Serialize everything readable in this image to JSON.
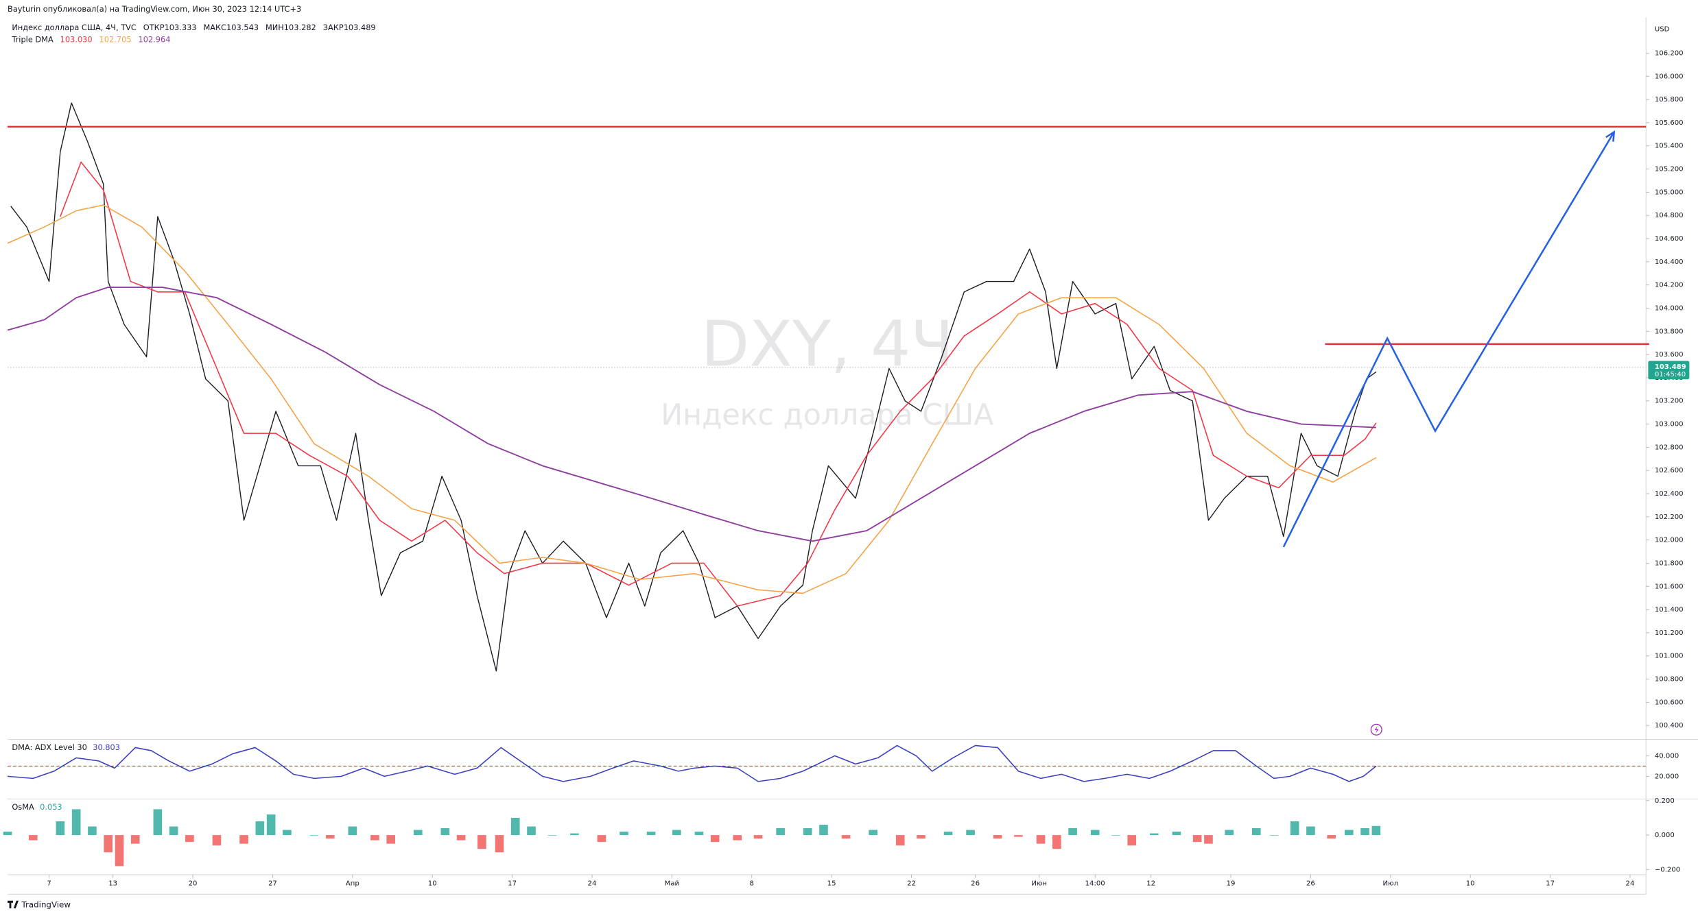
{
  "header": {
    "publisher": "Bayturin опубликовал(а) на TradingView.com, Июн 30, 2023 12:14 UTC+3",
    "symbol": "Индекс доллара США, 4Ч, TVC",
    "ohlc": [
      {
        "label": "ОТКР",
        "value": "103.333"
      },
      {
        "label": "МАКС",
        "value": "103.543"
      },
      {
        "label": "МИН",
        "value": "103.282"
      },
      {
        "label": "ЗАКР",
        "value": "103.489"
      }
    ],
    "indicator": "Triple DMA",
    "indicator_values": [
      "103.030",
      "102.705",
      "102.964"
    ]
  },
  "currency": "USD",
  "footer": {
    "logo": "TradingView"
  },
  "chart_data": [
    {
      "type": "line",
      "watermark": [
        "DXY, 4Ч",
        "Индекс доллара США"
      ],
      "xlim": [
        -2.6,
        100.0
      ],
      "xticks": [
        {
          "value": 0,
          "label": "7"
        },
        {
          "value": 4,
          "label": "13"
        },
        {
          "value": 9,
          "label": "20"
        },
        {
          "value": 14,
          "label": "27"
        },
        {
          "value": 19,
          "label": "Апр"
        },
        {
          "value": 24,
          "label": "10"
        },
        {
          "value": 29,
          "label": "17"
        },
        {
          "value": 34,
          "label": "24"
        },
        {
          "value": 39,
          "label": "Май"
        },
        {
          "value": 44,
          "label": "8"
        },
        {
          "value": 49,
          "label": "15"
        },
        {
          "value": 54,
          "label": "22"
        },
        {
          "value": 58,
          "label": "26"
        },
        {
          "value": 62,
          "label": "Июн"
        },
        {
          "value": 65.5,
          "label": "14:00"
        },
        {
          "value": 69,
          "label": "12"
        },
        {
          "value": 74,
          "label": "19"
        },
        {
          "value": 79,
          "label": "26"
        },
        {
          "value": 84,
          "label": "Июл"
        },
        {
          "value": 89,
          "label": "10"
        },
        {
          "value": 94,
          "label": "17"
        },
        {
          "value": 99,
          "label": "24"
        }
      ],
      "ylim": [
        100.28,
        106.49
      ],
      "yticks": [
        {
          "value": 100.4,
          "label": "100.400"
        },
        {
          "value": 100.6,
          "label": "100.600"
        },
        {
          "value": 100.8,
          "label": "100.800"
        },
        {
          "value": 101.0,
          "label": "101.000"
        },
        {
          "value": 101.2,
          "label": "101.200"
        },
        {
          "value": 101.4,
          "label": "101.400"
        },
        {
          "value": 101.6,
          "label": "101.600"
        },
        {
          "value": 101.8,
          "label": "101.800"
        },
        {
          "value": 102.0,
          "label": "102.000"
        },
        {
          "value": 102.2,
          "label": "102.200"
        },
        {
          "value": 102.4,
          "label": "102.400"
        },
        {
          "value": 102.6,
          "label": "102.600"
        },
        {
          "value": 102.8,
          "label": "102.800"
        },
        {
          "value": 103.0,
          "label": "103.000"
        },
        {
          "value": 103.2,
          "label": "103.200"
        },
        {
          "value": 103.4,
          "label": "103.400"
        },
        {
          "value": 103.6,
          "label": "103.600"
        },
        {
          "value": 103.8,
          "label": "103.800"
        },
        {
          "value": 104.0,
          "label": "104.000"
        },
        {
          "value": 104.2,
          "label": "104.200"
        },
        {
          "value": 104.4,
          "label": "104.400"
        },
        {
          "value": 104.6,
          "label": "104.600"
        },
        {
          "value": 104.8,
          "label": "104.800"
        },
        {
          "value": 105.0,
          "label": "105.000"
        },
        {
          "value": 105.2,
          "label": "105.200"
        },
        {
          "value": 105.4,
          "label": "105.400"
        },
        {
          "value": 105.6,
          "label": "105.600"
        },
        {
          "value": 105.8,
          "label": "105.800"
        },
        {
          "value": 106.0,
          "label": "106.000"
        },
        {
          "value": 106.2,
          "label": "106.200"
        }
      ],
      "series": [
        {
          "color": "#1c1f26",
          "width": 0.9,
          "x": [
            -2.4,
            -1.4,
            0,
            0.7,
            1.4,
            2.4,
            3.4,
            3.7,
            4.7,
            6.1,
            6.8,
            7.8,
            8.8,
            9.8,
            11.2,
            12.2,
            13.2,
            14.2,
            15.6,
            17.0,
            18.0,
            19.2,
            20.0,
            20.8,
            22.0,
            23.4,
            24.6,
            25.8,
            26.8,
            28.0,
            28.8,
            29.8,
            30.9,
            32.2,
            33.6,
            34.9,
            36.3,
            37.3,
            38.3,
            39.7,
            40.7,
            41.7,
            43.1,
            44.4,
            45.8,
            47.2,
            47.8,
            48.8,
            50.5,
            51.6,
            52.6,
            53.6,
            54.6,
            55.9,
            57.3,
            58.7,
            60.4,
            61.4,
            62.4,
            63.1,
            64.1,
            65.5,
            66.8,
            67.8,
            69.2,
            70.2,
            71.6,
            72.6,
            73.6,
            75.0,
            76.3,
            77.3,
            78.4,
            79.4,
            80.7,
            81.8,
            82.5,
            83.1
          ],
          "values": [
            104.88,
            104.7,
            104.23,
            105.35,
            105.77,
            105.44,
            105.07,
            104.23,
            103.86,
            103.58,
            104.79,
            104.42,
            103.95,
            103.39,
            103.2,
            102.17,
            102.64,
            103.11,
            102.64,
            102.64,
            102.17,
            102.92,
            102.17,
            101.52,
            101.89,
            101.99,
            102.55,
            102.17,
            101.52,
            100.87,
            101.71,
            102.08,
            101.8,
            101.99,
            101.8,
            101.33,
            101.8,
            101.43,
            101.89,
            102.08,
            101.8,
            101.33,
            101.43,
            101.15,
            101.43,
            101.61,
            102.08,
            102.64,
            102.36,
            102.92,
            103.48,
            103.2,
            103.11,
            103.58,
            104.14,
            104.23,
            104.23,
            104.51,
            104.14,
            103.48,
            104.23,
            103.95,
            104.04,
            103.39,
            103.67,
            103.29,
            103.2,
            102.17,
            102.36,
            102.55,
            102.55,
            102.03,
            102.92,
            102.64,
            102.55,
            103.11,
            103.39,
            103.45
          ]
        },
        {
          "color": "#f23645",
          "width": 1,
          "x": [
            0.7,
            2.0,
            3.4,
            5.1,
            6.8,
            8.5,
            10.2,
            12.2,
            14.2,
            16.3,
            18.7,
            20.7,
            22.7,
            24.8,
            26.8,
            28.5,
            30.9,
            33.6,
            36.3,
            39.0,
            41.0,
            43.1,
            45.8,
            47.5,
            49.2,
            51.2,
            53.3,
            55.3,
            57.3,
            59.4,
            61.4,
            63.4,
            65.5,
            67.5,
            69.5,
            71.6,
            72.9,
            75.0,
            77.0,
            79.0,
            81.1,
            82.4,
            83.1
          ],
          "values": [
            104.79,
            105.26,
            105.02,
            104.23,
            104.14,
            104.14,
            103.58,
            102.92,
            102.92,
            102.73,
            102.55,
            102.17,
            101.99,
            102.17,
            101.89,
            101.71,
            101.8,
            101.8,
            101.61,
            101.8,
            101.8,
            101.43,
            101.52,
            101.8,
            102.26,
            102.73,
            103.11,
            103.39,
            103.76,
            103.95,
            104.14,
            103.95,
            104.04,
            103.86,
            103.48,
            103.29,
            102.73,
            102.55,
            102.45,
            102.73,
            102.73,
            102.87,
            103.01
          ]
        },
        {
          "color": "#f5a244",
          "width": 1,
          "x": [
            -2.6,
            -0.3,
            1.7,
            3.4,
            5.8,
            8.5,
            11.2,
            13.9,
            16.6,
            20.0,
            22.7,
            25.4,
            28.2,
            30.9,
            33.6,
            37.0,
            40.4,
            44.4,
            47.2,
            49.9,
            52.6,
            55.3,
            58.0,
            60.7,
            63.4,
            66.8,
            69.5,
            72.3,
            75.0,
            77.7,
            80.4,
            83.1
          ],
          "values": [
            104.56,
            104.7,
            104.84,
            104.89,
            104.7,
            104.32,
            103.86,
            103.39,
            102.83,
            102.55,
            102.27,
            102.17,
            101.8,
            101.85,
            101.8,
            101.66,
            101.71,
            101.57,
            101.54,
            101.71,
            102.17,
            102.83,
            103.48,
            103.95,
            104.09,
            104.09,
            103.86,
            103.48,
            102.92,
            102.64,
            102.5,
            102.71
          ]
        },
        {
          "color": "#8e3e9e",
          "width": 1.2,
          "x": [
            -2.6,
            -0.3,
            1.7,
            3.7,
            7.1,
            10.5,
            13.9,
            17.3,
            20.7,
            24.1,
            27.5,
            30.9,
            34.3,
            37.7,
            41.0,
            44.4,
            47.8,
            51.2,
            54.6,
            58.0,
            61.4,
            64.8,
            68.2,
            71.6,
            75.0,
            78.4,
            83.1
          ],
          "values": [
            103.81,
            103.9,
            104.09,
            104.18,
            104.18,
            104.09,
            103.86,
            103.62,
            103.34,
            103.11,
            102.83,
            102.64,
            102.5,
            102.36,
            102.22,
            102.08,
            101.99,
            102.08,
            102.36,
            102.64,
            102.92,
            103.11,
            103.25,
            103.28,
            103.11,
            103.0,
            102.97
          ]
        }
      ],
      "hlines": [
        {
          "color": "#e0303b",
          "x": [
            -2.6,
            100.0
          ],
          "value": 105.565
        },
        {
          "color": "#e0303b",
          "x": [
            79.9,
            100.2
          ],
          "value": 103.69
        }
      ],
      "drawings": [
        {
          "color": "#2460e0",
          "x": [
            77.3,
            83.8,
            86.8,
            98.0
          ],
          "values": [
            101.94,
            103.74,
            102.94,
            105.52
          ]
        }
      ],
      "last": 103.489,
      "last_color": "#22a58e",
      "timer": "01:45:40"
    },
    {
      "type": "line",
      "label": "DMA: ADX Level 30",
      "value_text": "30.803",
      "level": 30,
      "level_color": "#d32f2f",
      "ylim": [
        -2,
        56
      ],
      "yticks": [
        {
          "value": 20,
          "label": "20.000"
        },
        {
          "value": 40,
          "label": "40.000"
        }
      ],
      "series": [
        {
          "color": "#3b3fbf",
          "width": 1,
          "x": [
            -2.6,
            -1.0,
            0.3,
            1.7,
            3.1,
            4.1,
            5.4,
            6.4,
            7.5,
            8.8,
            10.2,
            11.5,
            12.9,
            14.2,
            15.3,
            16.6,
            18.3,
            19.7,
            21.0,
            22.4,
            23.7,
            25.4,
            26.8,
            28.3,
            29.5,
            30.9,
            32.2,
            33.9,
            35.3,
            36.6,
            38.3,
            39.4,
            40.4,
            41.7,
            43.1,
            44.4,
            45.8,
            47.2,
            49.2,
            50.5,
            51.9,
            53.1,
            54.3,
            55.3,
            56.6,
            58.0,
            59.4,
            60.7,
            62.1,
            63.4,
            64.8,
            66.1,
            67.5,
            68.9,
            70.2,
            71.6,
            72.9,
            74.3,
            75.6,
            76.7,
            77.7,
            79.0,
            80.4,
            81.4,
            82.3,
            83.1
          ],
          "values": [
            20,
            18,
            25,
            38,
            35,
            28,
            48,
            45,
            35,
            25,
            32,
            42,
            48,
            35,
            22,
            18,
            20,
            28,
            20,
            25,
            30,
            22,
            28,
            48,
            35,
            20,
            15,
            20,
            28,
            35,
            30,
            25,
            28,
            30,
            28,
            15,
            18,
            25,
            40,
            32,
            38,
            50,
            40,
            25,
            38,
            50,
            48,
            25,
            18,
            22,
            15,
            18,
            22,
            18,
            25,
            35,
            45,
            45,
            30,
            18,
            20,
            28,
            22,
            15,
            20,
            30
          ]
        }
      ]
    },
    {
      "type": "bar",
      "label": "OsMA",
      "value_text": "0.053",
      "up_color": "#26a69a",
      "down_color": "#ef5350",
      "ylim": [
        -0.23,
        0.21
      ],
      "yticks": [
        {
          "value": -0.2,
          "label": "−0.200"
        },
        {
          "value": 0,
          "label": "0.000"
        },
        {
          "value": 0.2,
          "label": "0.200"
        }
      ],
      "x": [
        -2.6,
        -1.0,
        0.7,
        1.7,
        2.7,
        3.7,
        4.4,
        5.4,
        6.8,
        7.8,
        8.8,
        10.5,
        12.2,
        13.2,
        13.9,
        14.9,
        16.6,
        17.6,
        19.0,
        20.4,
        21.4,
        23.1,
        24.8,
        25.8,
        27.1,
        28.2,
        29.2,
        30.2,
        31.5,
        32.9,
        34.6,
        36.0,
        37.7,
        39.3,
        40.7,
        41.7,
        43.1,
        44.4,
        45.8,
        47.5,
        48.5,
        49.9,
        51.6,
        53.3,
        54.6,
        56.3,
        57.7,
        59.4,
        60.7,
        62.1,
        63.1,
        64.1,
        65.5,
        66.8,
        67.8,
        69.2,
        70.6,
        71.9,
        72.6,
        73.9,
        75.6,
        76.7,
        78.0,
        79.0,
        80.3,
        81.4,
        82.4,
        83.1
      ],
      "values": [
        0.02,
        -0.03,
        0.08,
        0.15,
        0.05,
        -0.1,
        -0.18,
        -0.05,
        0.15,
        0.05,
        -0.04,
        -0.06,
        -0.05,
        0.08,
        0.12,
        0.03,
        0.0,
        -0.02,
        0.05,
        -0.03,
        -0.05,
        0.03,
        0.04,
        -0.03,
        -0.08,
        -0.1,
        0.1,
        0.05,
        0.0,
        0.01,
        -0.04,
        0.02,
        0.02,
        0.03,
        0.02,
        -0.04,
        -0.03,
        -0.02,
        0.04,
        0.04,
        0.06,
        -0.02,
        0.03,
        -0.06,
        -0.02,
        0.02,
        0.03,
        -0.02,
        -0.01,
        -0.05,
        -0.08,
        0.04,
        0.03,
        0.0,
        -0.06,
        0.01,
        0.02,
        -0.04,
        -0.05,
        0.03,
        0.04,
        0.0,
        0.08,
        0.05,
        -0.02,
        0.03,
        0.04,
        0.053
      ]
    }
  ]
}
